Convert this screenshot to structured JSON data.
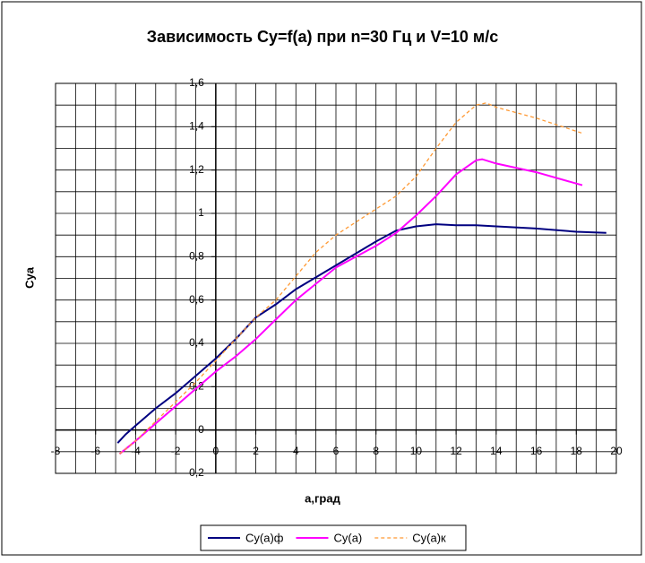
{
  "chart_data": {
    "type": "line",
    "title": "Зависимость Cy=f(a) при n=30 Гц и V=10 м/с",
    "x_label": "a,град",
    "y_label": "Cya",
    "xlim": [
      -8,
      20
    ],
    "ylim": [
      -0.2,
      1.6
    ],
    "xticks": [
      -8,
      -6,
      -4,
      -2,
      0,
      2,
      4,
      6,
      8,
      10,
      12,
      14,
      16,
      18,
      20
    ],
    "yticks": [
      {
        "value": -0.2,
        "label": "-0,2"
      },
      0,
      {
        "value": 0.2,
        "label": "0,2"
      },
      {
        "value": 0.4,
        "label": "0,4"
      },
      {
        "value": 0.6,
        "label": "0,6"
      },
      {
        "value": 0.8,
        "label": "0,8"
      },
      1,
      {
        "value": 1.2,
        "label": "1,2"
      },
      {
        "value": 1.4,
        "label": "1,4"
      },
      {
        "value": 1.6,
        "label": "1,6"
      }
    ],
    "xgrid": [
      -7,
      -6,
      -5,
      -4,
      -3,
      -2,
      -1,
      0,
      1,
      2,
      3,
      4,
      5,
      6,
      7,
      8,
      9,
      10,
      11,
      12,
      13,
      14,
      15,
      16,
      17,
      18,
      19
    ],
    "ygrid": [
      -0.1,
      0,
      0.1,
      0.2,
      0.3,
      0.4,
      0.5,
      0.6,
      0.7,
      0.8,
      0.9,
      1,
      1.1,
      1.2,
      1.3,
      1.4,
      1.5
    ],
    "grid": true,
    "legend": "bottom",
    "series": [
      {
        "name": "Cy(a)ф",
        "color": "#000080",
        "dashed": false,
        "x": [
          -4.9,
          -4.5,
          -4,
          -3,
          -2,
          -1,
          0,
          1,
          2,
          3,
          4,
          6,
          8,
          9,
          10,
          11,
          12,
          13,
          14,
          16,
          18,
          19.5
        ],
        "values": [
          -0.06,
          -0.02,
          0.02,
          0.1,
          0.17,
          0.25,
          0.33,
          0.42,
          0.52,
          0.58,
          0.65,
          0.76,
          0.87,
          0.92,
          0.94,
          0.95,
          0.945,
          0.945,
          0.94,
          0.93,
          0.915,
          0.91
        ]
      },
      {
        "name": "Cy(a)",
        "color": "#ff00ff",
        "dashed": false,
        "x": [
          -4.8,
          -4,
          -3,
          -2,
          -1,
          0,
          1,
          2,
          3,
          4,
          6,
          8,
          9,
          10,
          11,
          12,
          13,
          13.3,
          14,
          16,
          18.3
        ],
        "values": [
          -0.11,
          -0.05,
          0.03,
          0.11,
          0.19,
          0.27,
          0.34,
          0.42,
          0.51,
          0.6,
          0.75,
          0.85,
          0.91,
          0.99,
          1.08,
          1.18,
          1.245,
          1.25,
          1.23,
          1.19,
          1.13
        ]
      },
      {
        "name": "Cy(a)к",
        "color": "#ff9933",
        "dashed": true,
        "x": [
          -4.8,
          -4,
          -3,
          -2,
          -1,
          0,
          1,
          2,
          3,
          4,
          5,
          6,
          8,
          9,
          10,
          11,
          12,
          13,
          13.5,
          14,
          16,
          18.3
        ],
        "values": [
          -0.11,
          -0.05,
          0.04,
          0.13,
          0.22,
          0.32,
          0.42,
          0.52,
          0.6,
          0.71,
          0.82,
          0.9,
          1.02,
          1.08,
          1.17,
          1.3,
          1.42,
          1.5,
          1.51,
          1.49,
          1.44,
          1.37
        ]
      }
    ]
  }
}
